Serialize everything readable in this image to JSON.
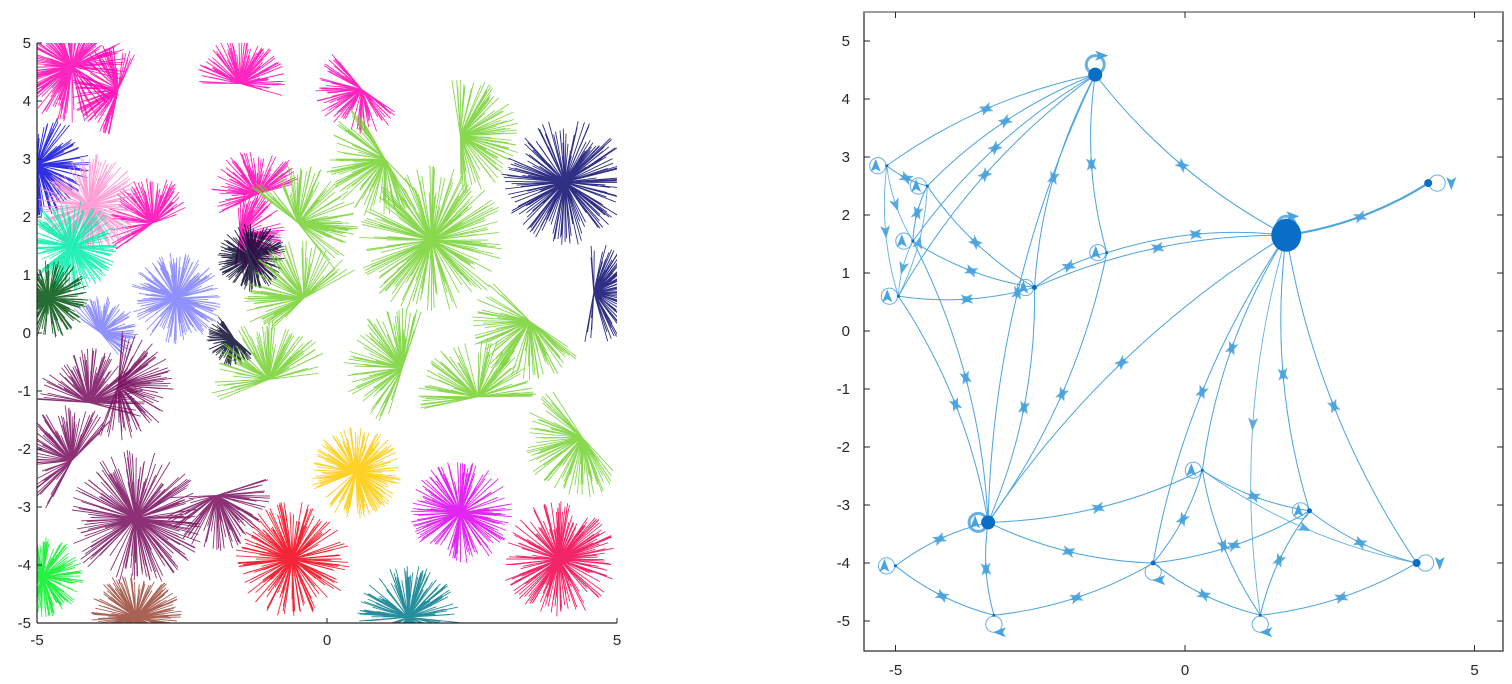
{
  "chart_data": [
    {
      "type": "scatter",
      "subtype": "cluster-star-segments",
      "title": "",
      "xlabel": "",
      "ylabel": "",
      "xlim": [
        -5,
        5
      ],
      "ylim": [
        -5,
        5
      ],
      "xticks": [
        "-5",
        "0",
        "5"
      ],
      "yticks": [
        "5",
        "4",
        "3",
        "2",
        "1",
        "0",
        "-1",
        "-2",
        "-3",
        "-4",
        "-5"
      ],
      "grid": false,
      "legend": null,
      "box": "left-bottom axes only",
      "clusters": [
        {
          "color": "#ff00b4",
          "centers": [
            [
              -4.4,
              4.6
            ],
            [
              -3.6,
              4.2
            ],
            [
              -1.5,
              4.3
            ],
            [
              0.6,
              4.2
            ],
            [
              -1.2,
              2.4
            ],
            [
              -3.0,
              1.9
            ],
            [
              -1.5,
              1.7
            ]
          ],
          "spread": 1.0
        },
        {
          "color": "#0a0adf",
          "centers": [
            [
              -5.0,
              2.9
            ]
          ],
          "spread": 0.9
        },
        {
          "color": "#ff8fd0",
          "centers": [
            [
              -4.1,
              2.2
            ]
          ],
          "spread": 0.9
        },
        {
          "color": "#00f0aa",
          "centers": [
            [
              -4.4,
              1.5
            ]
          ],
          "spread": 0.8
        },
        {
          "color": "#00530f",
          "centers": [
            [
              -4.8,
              0.6
            ]
          ],
          "spread": 0.7
        },
        {
          "color": "#7e7efe",
          "centers": [
            [
              -2.6,
              0.6
            ],
            [
              -3.9,
              0.0
            ]
          ],
          "spread": 0.8
        },
        {
          "color": "#0a0a30",
          "centers": [
            [
              -1.3,
              1.3
            ],
            [
              -1.6,
              -0.1
            ]
          ],
          "spread": 0.6
        },
        {
          "color": "#74d130",
          "centers": [
            [
              1.8,
              1.6
            ],
            [
              1.0,
              3.0
            ],
            [
              2.3,
              3.4
            ],
            [
              -0.5,
              1.9
            ],
            [
              -0.4,
              0.6
            ],
            [
              -1.0,
              -0.8
            ],
            [
              2.6,
              -1.1
            ],
            [
              4.4,
              -1.8
            ],
            [
              1.3,
              -0.6
            ],
            [
              3.5,
              0.2
            ]
          ],
          "spread": 1.3
        },
        {
          "color": "#0a0a70",
          "centers": [
            [
              4.1,
              2.6
            ],
            [
              4.6,
              0.7
            ]
          ],
          "spread": 1.1
        },
        {
          "color": "#780d5e",
          "centers": [
            [
              -3.3,
              -3.2
            ],
            [
              -1.9,
              -2.8
            ],
            [
              -3.6,
              -0.9
            ],
            [
              -4.4,
              -2.2
            ],
            [
              -4.1,
              -1.2
            ]
          ],
          "spread": 1.2
        },
        {
          "color": "#00f022",
          "centers": [
            [
              -4.9,
              -4.2
            ]
          ],
          "spread": 0.7
        },
        {
          "color": "#9a4535",
          "centers": [
            [
              -3.3,
              -4.9
            ]
          ],
          "spread": 0.8
        },
        {
          "color": "#f00014",
          "centers": [
            [
              -0.6,
              -3.9
            ]
          ],
          "spread": 1.0
        },
        {
          "color": "#ffc800",
          "centers": [
            [
              0.5,
              -2.4
            ]
          ],
          "spread": 0.8
        },
        {
          "color": "#dd00ee",
          "centers": [
            [
              2.3,
              -3.1
            ]
          ],
          "spread": 0.9
        },
        {
          "color": "#007a8c",
          "centers": [
            [
              1.4,
              -4.9
            ]
          ],
          "spread": 0.9
        },
        {
          "color": "#f0004c",
          "centers": [
            [
              4.0,
              -3.9
            ]
          ],
          "spread": 1.0
        }
      ]
    },
    {
      "type": "network",
      "subtype": "directed-graph",
      "title": "",
      "xlabel": "",
      "ylabel": "",
      "xlim": [
        -5.5,
        5.5
      ],
      "ylim": [
        -5.5,
        5.5
      ],
      "xticks": [
        "-5",
        "0",
        "5"
      ],
      "yticks": [
        "5",
        "4",
        "3",
        "2",
        "1",
        "0",
        "-1",
        "-2",
        "-3",
        "-4",
        "-5"
      ],
      "grid": false,
      "legend": null,
      "box": "full box",
      "edge_color": "#4aa3de",
      "node_color": "#0a6ec8",
      "nodes": [
        {
          "id": 0,
          "x": -1.55,
          "y": 4.42,
          "size": 7,
          "self_loop": true
        },
        {
          "id": 1,
          "x": 1.75,
          "y": 1.65,
          "size": 15,
          "self_loop": true
        },
        {
          "id": 2,
          "x": 4.2,
          "y": 2.55,
          "size": 4,
          "self_loop": true
        },
        {
          "id": 3,
          "x": -5.15,
          "y": 2.85,
          "size": 1,
          "self_loop": true
        },
        {
          "id": 4,
          "x": -4.45,
          "y": 2.5,
          "size": 1,
          "self_loop": true
        },
        {
          "id": 5,
          "x": -4.7,
          "y": 1.55,
          "size": 1,
          "self_loop": true
        },
        {
          "id": 6,
          "x": -4.95,
          "y": 0.6,
          "size": 1,
          "self_loop": true
        },
        {
          "id": 7,
          "x": -2.6,
          "y": 0.75,
          "size": 2,
          "self_loop": true
        },
        {
          "id": 8,
          "x": -1.35,
          "y": 1.35,
          "size": 1,
          "self_loop": true
        },
        {
          "id": 9,
          "x": -3.4,
          "y": -3.3,
          "size": 6,
          "self_loop": true
        },
        {
          "id": 10,
          "x": -5.0,
          "y": -4.05,
          "size": 1,
          "self_loop": true
        },
        {
          "id": 11,
          "x": -3.3,
          "y": -4.9,
          "size": 1,
          "self_loop": true
        },
        {
          "id": 12,
          "x": -0.55,
          "y": -4.0,
          "size": 2,
          "self_loop": true
        },
        {
          "id": 13,
          "x": 0.3,
          "y": -2.4,
          "size": 1,
          "self_loop": true
        },
        {
          "id": 14,
          "x": 2.15,
          "y": -3.1,
          "size": 2,
          "self_loop": true
        },
        {
          "id": 15,
          "x": 1.3,
          "y": -4.9,
          "size": 1,
          "self_loop": true
        },
        {
          "id": 16,
          "x": 4.0,
          "y": -4.0,
          "size": 3,
          "self_loop": true
        }
      ],
      "edges": [
        [
          0,
          3
        ],
        [
          0,
          4
        ],
        [
          0,
          5
        ],
        [
          0,
          6
        ],
        [
          0,
          7
        ],
        [
          0,
          8
        ],
        [
          0,
          9
        ],
        [
          0,
          1
        ],
        [
          1,
          0
        ],
        [
          1,
          2
        ],
        [
          2,
          1
        ],
        [
          1,
          7
        ],
        [
          7,
          1
        ],
        [
          1,
          8
        ],
        [
          8,
          1
        ],
        [
          1,
          9
        ],
        [
          1,
          12
        ],
        [
          1,
          13
        ],
        [
          1,
          14
        ],
        [
          1,
          15
        ],
        [
          1,
          16
        ],
        [
          3,
          4
        ],
        [
          4,
          3
        ],
        [
          3,
          5
        ],
        [
          4,
          5
        ],
        [
          5,
          4
        ],
        [
          4,
          7
        ],
        [
          7,
          4
        ],
        [
          5,
          7
        ],
        [
          7,
          5
        ],
        [
          6,
          7
        ],
        [
          7,
          6
        ],
        [
          3,
          6
        ],
        [
          6,
          4
        ],
        [
          5,
          6
        ],
        [
          8,
          7
        ],
        [
          7,
          8
        ],
        [
          3,
          0
        ],
        [
          4,
          0
        ],
        [
          5,
          0
        ],
        [
          6,
          0
        ],
        [
          7,
          0
        ],
        [
          8,
          0
        ],
        [
          9,
          7
        ],
        [
          7,
          9
        ],
        [
          9,
          6
        ],
        [
          6,
          9
        ],
        [
          9,
          5
        ],
        [
          5,
          9
        ],
        [
          9,
          8
        ],
        [
          8,
          9
        ],
        [
          9,
          0
        ],
        [
          9,
          1
        ],
        [
          9,
          10
        ],
        [
          10,
          9
        ],
        [
          9,
          11
        ],
        [
          11,
          9
        ],
        [
          10,
          11
        ],
        [
          11,
          10
        ],
        [
          9,
          12
        ],
        [
          12,
          9
        ],
        [
          9,
          13
        ],
        [
          13,
          9
        ],
        [
          11,
          12
        ],
        [
          12,
          11
        ],
        [
          12,
          13
        ],
        [
          13,
          12
        ],
        [
          12,
          14
        ],
        [
          14,
          12
        ],
        [
          12,
          15
        ],
        [
          15,
          12
        ],
        [
          13,
          14
        ],
        [
          14,
          13
        ],
        [
          13,
          15
        ],
        [
          14,
          15
        ],
        [
          15,
          14
        ],
        [
          14,
          16
        ],
        [
          16,
          14
        ],
        [
          15,
          16
        ],
        [
          16,
          15
        ],
        [
          13,
          16
        ],
        [
          12,
          1
        ],
        [
          13,
          1
        ],
        [
          14,
          1
        ],
        [
          16,
          1
        ],
        [
          15,
          13
        ]
      ]
    }
  ],
  "plots": {
    "left": {
      "x_ticks": [
        "-5",
        "0",
        "5"
      ],
      "y_ticks": [
        "5",
        "4",
        "3",
        "2",
        "1",
        "0",
        "-1",
        "-2",
        "-3",
        "-4",
        "-5"
      ]
    },
    "right": {
      "x_ticks": [
        "-5",
        "0",
        "5"
      ],
      "y_ticks": [
        "5",
        "4",
        "3",
        "2",
        "1",
        "0",
        "-1",
        "-2",
        "-3",
        "-4",
        "-5"
      ]
    }
  }
}
